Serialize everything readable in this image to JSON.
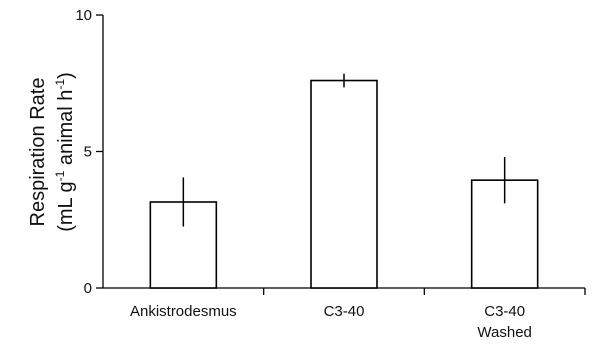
{
  "chart_data": {
    "type": "bar",
    "categories": [
      "Ankistrodesmus",
      "C3-40",
      "C3-40\nWashed"
    ],
    "values": [
      3.15,
      7.6,
      3.95
    ],
    "error": [
      0.9,
      0.25,
      0.85
    ],
    "ylabel_line1": "Respiration Rate",
    "ylabel_line2": {
      "pre": "(mL g",
      "sup1": "-1",
      "mid": " animal h",
      "sup2": "-1",
      "post": ")"
    },
    "ylim": [
      0,
      10
    ],
    "yticks": [
      0,
      5,
      10
    ],
    "grid": false,
    "bar_fill": "#ffffff",
    "bar_stroke": "#000000"
  }
}
